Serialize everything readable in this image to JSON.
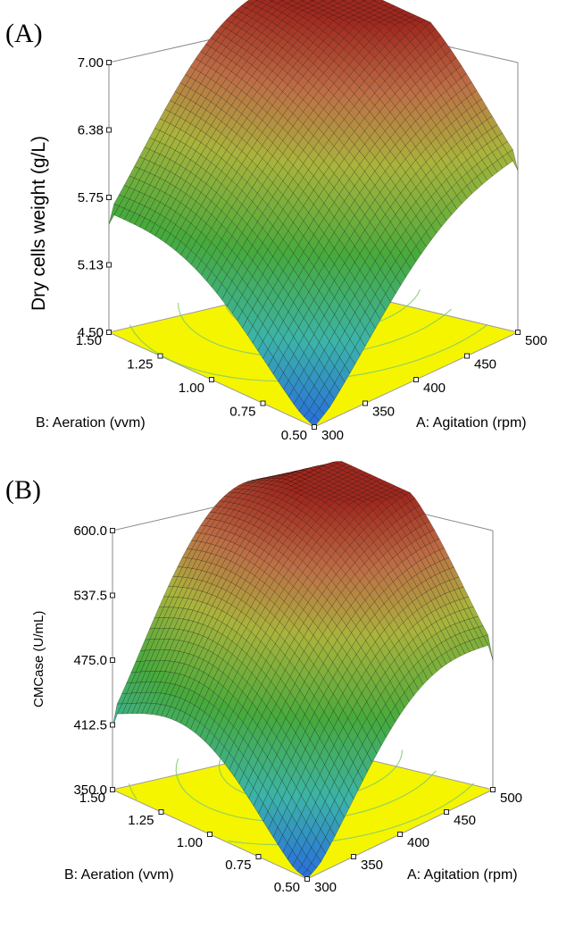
{
  "chart_data": [
    {
      "type": "surface",
      "panel_label": "(A)",
      "zlabel": "Dry cells weight (g/L)",
      "xlabel": "A: Agitation (rpm)",
      "ylabel": "B: Aeration (vvm)",
      "x_ticks": [
        "300",
        "350",
        "400",
        "450",
        "500"
      ],
      "y_ticks": [
        "0.50",
        "0.75",
        "1.00",
        "1.25",
        "1.50"
      ],
      "z_ticks": [
        "4.50",
        "5.13",
        "5.75",
        "6.38",
        "7.00"
      ],
      "x_range": [
        300,
        500
      ],
      "y_range": [
        0.5,
        1.5
      ],
      "z_range": [
        4.5,
        7.0
      ],
      "corner_values": [
        {
          "x": 300,
          "y": 0.5,
          "z": 4.5
        },
        {
          "x": 300,
          "y": 1.5,
          "z": 5.5
        },
        {
          "x": 500,
          "y": 0.5,
          "z": 6.0
        },
        {
          "x": 500,
          "y": 1.5,
          "z": 6.6
        }
      ],
      "peak": {
        "x": 450,
        "y": 1.2,
        "z": 7.0
      },
      "floor_color": "#f5f500"
    },
    {
      "type": "surface",
      "panel_label": "(B)",
      "zlabel": "CMCase (U/mL)",
      "xlabel": "A: Agitation (rpm)",
      "ylabel": "B: Aeration (vvm)",
      "x_ticks": [
        "300",
        "350",
        "400",
        "450",
        "500"
      ],
      "y_ticks": [
        "0.50",
        "0.75",
        "1.00",
        "1.25",
        "1.50"
      ],
      "z_ticks": [
        "350.0",
        "412.5",
        "475.0",
        "537.5",
        "600.0"
      ],
      "x_range": [
        300,
        500
      ],
      "y_range": [
        0.5,
        1.5
      ],
      "z_range": [
        350,
        600
      ],
      "corner_values": [
        {
          "x": 300,
          "y": 0.5,
          "z": 350
        },
        {
          "x": 300,
          "y": 1.5,
          "z": 410
        },
        {
          "x": 500,
          "y": 0.5,
          "z": 475
        },
        {
          "x": 500,
          "y": 1.5,
          "z": 520
        }
      ],
      "peak": {
        "x": 440,
        "y": 1.15,
        "z": 600
      },
      "floor_color": "#f5f500"
    }
  ]
}
